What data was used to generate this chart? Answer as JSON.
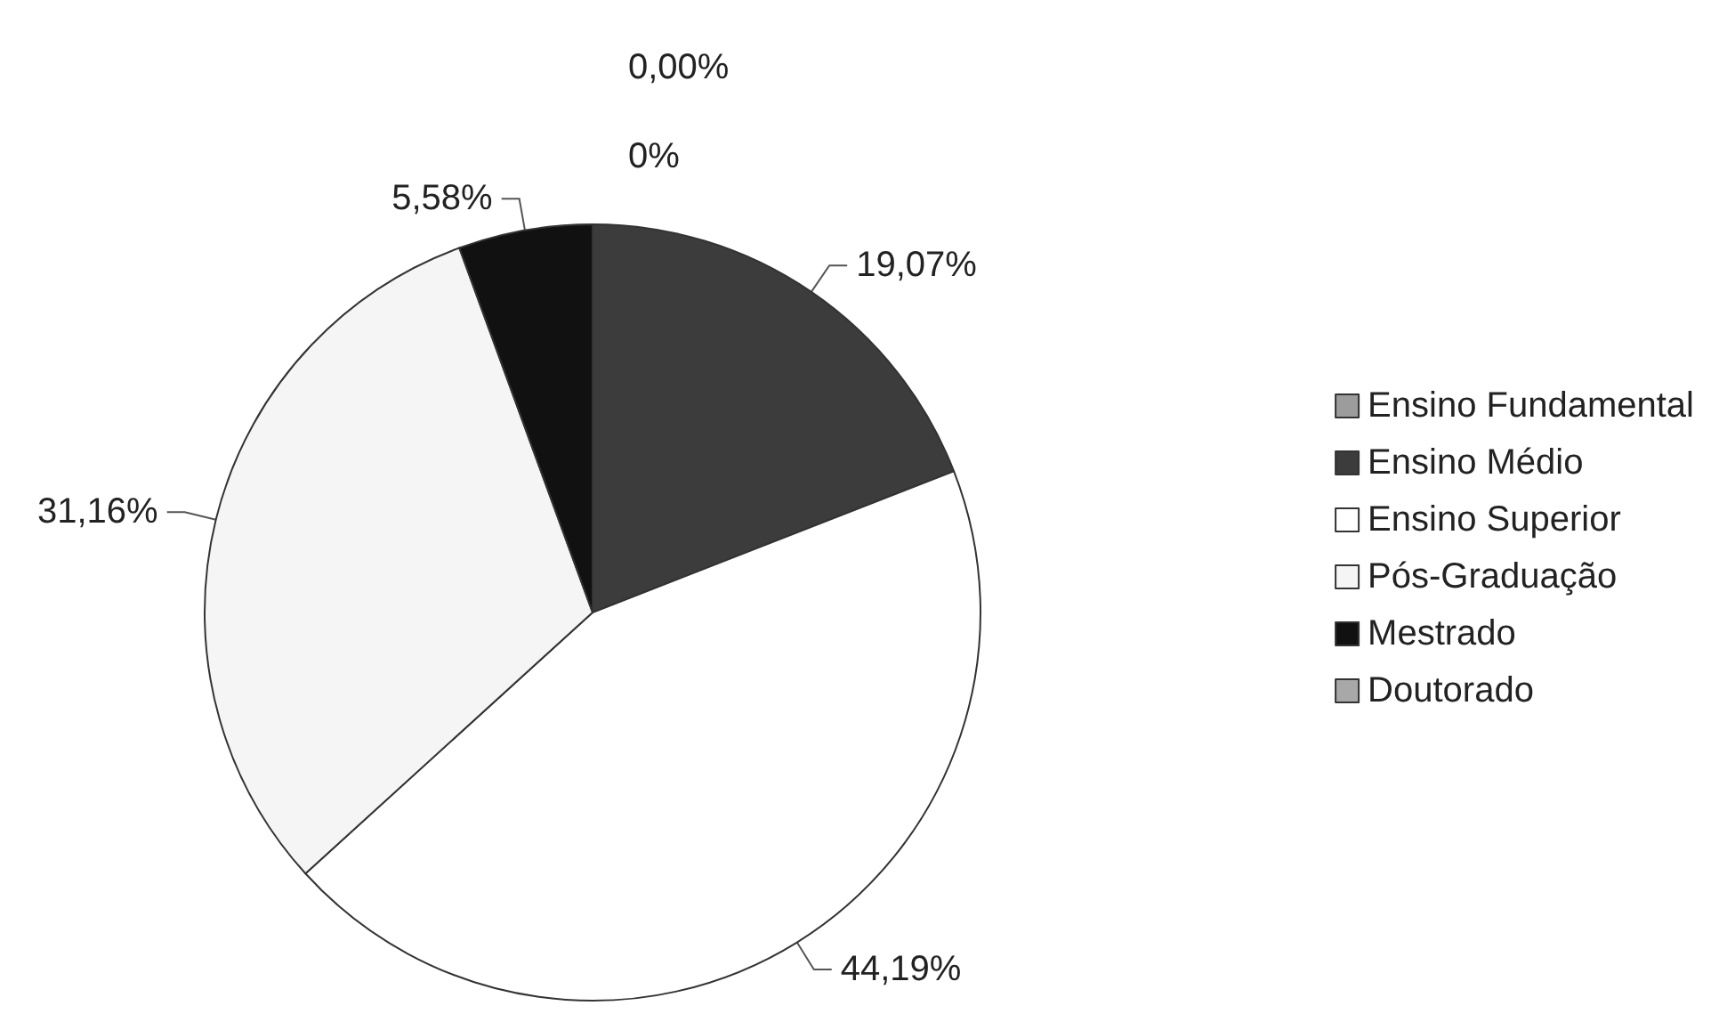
{
  "chart_data": {
    "type": "pie",
    "categories": [
      "Ensino Fundamental",
      "Ensino Médio",
      "Ensino Superior",
      "Pós-Graduação",
      "Mestrado",
      "Doutorado"
    ],
    "values": [
      0,
      19.07,
      44.19,
      31.16,
      5.58,
      0
    ],
    "value_labels": [
      "0,00%",
      "19,07%",
      "44,19%",
      "31,16%",
      "5,58%",
      "0%"
    ],
    "colors": [
      "#9c9c9c",
      "#3c3c3c",
      "#ffffff",
      "#f5f5f5",
      "#111111",
      "#a8a8a8"
    ],
    "legend": "right"
  }
}
